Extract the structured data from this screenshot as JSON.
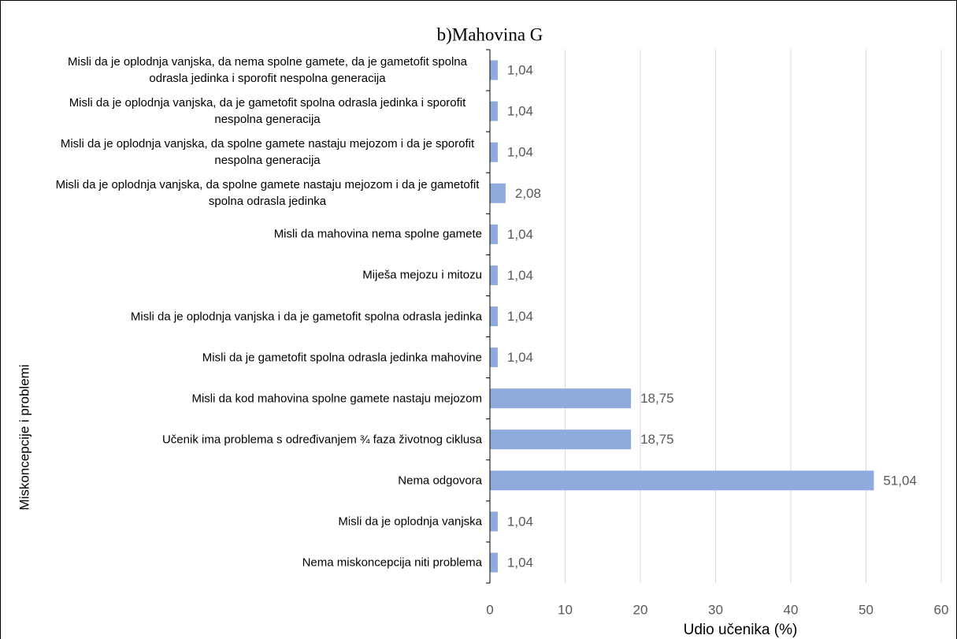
{
  "chart_data": {
    "type": "barh",
    "title": "b)Mahovina G",
    "xlabel": "Udio učenika (%)",
    "ylabel": "Miskoncepcije i problemi",
    "categories": [
      "Misli da je oplodnja vanjska, da nema spolne gamete, da je gametofit spolna odrasla jedinka i  sporofit nespolna generacija",
      "Misli da je oplodnja vanjska, da je gametofit spolna odrasla jedinka i sporofit nespolna generacija",
      "Misli da je oplodnja vanjska, da spolne gamete nastaju mejozom i da je sporofit nespolna generacija",
      "Misli da je oplodnja vanjska, da spolne gamete nastaju mejozom i da je gametofit spolna odrasla jedinka",
      "Misli da mahovina nema spolne gamete",
      "Miješa mejozu i mitozu",
      "Misli da je oplodnja vanjska i da je gametofit spolna odrasla jedinka",
      "Misli da je gametofit spolna odrasla jedinka mahovine",
      "Misli da kod mahovina spolne gamete nastaju mejozom",
      "Učenik ima problema s određivanjem ¾ faza životnog ciklusa",
      "Nema odgovora",
      "Misli da je oplodnja vanjska",
      "Nema miskoncepcija niti problema"
    ],
    "values": [
      1.04,
      1.04,
      1.04,
      2.08,
      1.04,
      1.04,
      1.04,
      1.04,
      18.75,
      18.75,
      51.04,
      1.04,
      1.04
    ],
    "value_labels": [
      "1,04",
      "1,04",
      "1,04",
      "2,08",
      "1,04",
      "1,04",
      "1,04",
      "1,04",
      "18,75",
      "18,75",
      "51,04",
      "1,04",
      "1,04"
    ],
    "color": "#8faadc",
    "xlim": [
      0,
      60
    ],
    "xticks": [
      0,
      10,
      20,
      30,
      40,
      50,
      60
    ],
    "grid": true
  }
}
